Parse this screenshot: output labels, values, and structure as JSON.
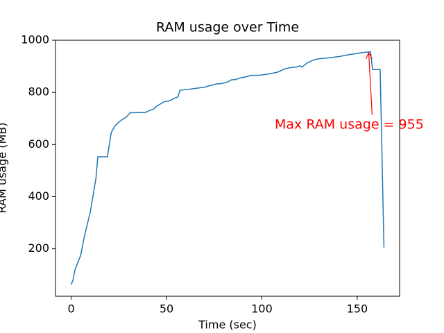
{
  "chart_data": {
    "type": "line",
    "title": "RAM usage over Time",
    "xlabel": "Time (sec)",
    "ylabel": "RAM usage (MB)",
    "annotation": "Max RAM usage = 955",
    "annotation_color": "red",
    "xlim": [
      -8.2,
      172.2
    ],
    "xticks": [
      0,
      50,
      100,
      150
    ],
    "ylim": [
      18,
      1000
    ],
    "yticks": [
      200,
      400,
      600,
      800,
      1000
    ],
    "series": [
      {
        "name": "RAM usage",
        "color": "#1f77b4",
        "x": [
          0,
          1,
          2,
          5,
          7,
          10,
          13,
          14,
          19,
          21,
          23,
          26,
          29,
          31,
          39,
          41,
          43,
          45,
          49,
          51,
          55,
          56,
          57,
          62,
          70,
          76,
          79,
          82,
          84,
          86,
          89,
          92,
          94,
          99,
          103,
          108,
          112,
          115,
          118,
          120,
          121,
          124,
          127,
          130,
          136,
          141,
          146,
          149,
          152,
          156,
          157,
          158,
          162,
          164
        ],
        "values": [
          63,
          80,
          120,
          175,
          250,
          340,
          470,
          553,
          553,
          645,
          672,
          692,
          706,
          722,
          723,
          730,
          735,
          748,
          765,
          766,
          780,
          783,
          808,
          812,
          820,
          832,
          834,
          840,
          848,
          849,
          856,
          860,
          865,
          866,
          870,
          877,
          890,
          895,
          897,
          902,
          897,
          914,
          924,
          929,
          933,
          938,
          945,
          948,
          952,
          955,
          955,
          888,
          888,
          205
        ]
      }
    ]
  }
}
